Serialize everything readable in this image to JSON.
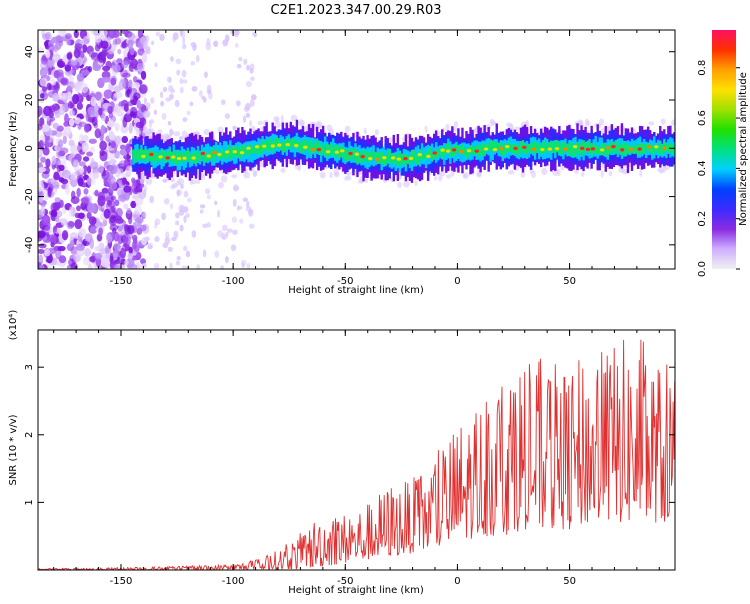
{
  "title": "C2E1.2023.347.00.29.R03",
  "chart_data": [
    {
      "type": "heatmap",
      "xlabel": "Height of straight line (km)",
      "ylabel": "Frequency (Hz)",
      "xlim": [
        -187,
        97
      ],
      "ylim": [
        -50,
        49
      ],
      "xticks": [
        -150,
        -100,
        -50,
        0,
        50
      ],
      "xtick_labels": [
        "-150",
        "-100",
        "-50",
        "0",
        "50"
      ],
      "yticks": [
        -40,
        -20,
        0,
        20,
        40
      ],
      "ytick_labels": [
        "-40",
        "-20",
        "0",
        "20",
        "40"
      ],
      "grid": false,
      "colorbar": {
        "label": "Normalized spectral amplitude",
        "range": [
          0.0,
          0.95
        ],
        "ticks": [
          0.0,
          0.2,
          0.4,
          0.6,
          0.8
        ],
        "tick_labels": [
          "0.0",
          "0.2",
          "0.4",
          "0.6",
          "0.8"
        ],
        "colormap": [
          "#f0f0f0",
          "#cfb0ff",
          "#8a2be2",
          "#3b2bff",
          "#0040ff",
          "#00d0ff",
          "#00e080",
          "#20e000",
          "#a0e000",
          "#ffe000",
          "#ffa000",
          "#ff3000",
          "#ff1060"
        ]
      },
      "ridge": {
        "x": [
          -145,
          -135,
          -125,
          -115,
          -105,
          -95,
          -85,
          -75,
          -65,
          -55,
          -45,
          -35,
          -25,
          -15,
          -5,
          5,
          15,
          25,
          35,
          45,
          55,
          65,
          75,
          85,
          95
        ],
        "frequency": [
          -3,
          -3,
          -4,
          -3,
          -2,
          -1,
          1,
          2,
          0,
          -1,
          -3,
          -4,
          -5,
          -3,
          -1,
          -1,
          0,
          0,
          0,
          0,
          0,
          0,
          0,
          0,
          0
        ]
      }
    },
    {
      "type": "line",
      "xlabel": "Height of straight line (km)",
      "ylabel": "SNR (10 * v/v)",
      "y_multiplier_label": "(x10⁴)",
      "xlim": [
        -187,
        97
      ],
      "ylim": [
        0,
        3.55
      ],
      "xticks": [
        -150,
        -100,
        -50,
        0,
        50
      ],
      "xtick_labels": [
        "-150",
        "-100",
        "-50",
        "0",
        "50"
      ],
      "yticks": [
        1,
        2,
        3
      ],
      "ytick_labels": [
        "1",
        "2",
        "3"
      ],
      "grid": false,
      "series": [
        {
          "color": "#e03030",
          "envelope_x": [
            -187,
            -160,
            -130,
            -110,
            -100,
            -90,
            -80,
            -70,
            -60,
            -50,
            -40,
            -30,
            -20,
            -10,
            0,
            10,
            20,
            30,
            40,
            50,
            60,
            70,
            80,
            90,
            97
          ],
          "envelope_max": [
            0.02,
            0.03,
            0.05,
            0.07,
            0.09,
            0.15,
            0.3,
            0.55,
            0.9,
            0.85,
            1.0,
            1.3,
            1.35,
            1.7,
            2.2,
            2.5,
            3.0,
            3.2,
            3.1,
            3.0,
            3.3,
            3.4,
            3.5,
            3.1,
            3.0
          ],
          "envelope_min": [
            0.0,
            0.0,
            0.0,
            0.0,
            0.0,
            0.0,
            0.0,
            0.02,
            0.05,
            0.1,
            0.15,
            0.2,
            0.25,
            0.3,
            0.4,
            0.5,
            0.5,
            0.6,
            0.6,
            0.6,
            0.7,
            0.7,
            0.7,
            0.7,
            0.7
          ]
        }
      ]
    }
  ]
}
